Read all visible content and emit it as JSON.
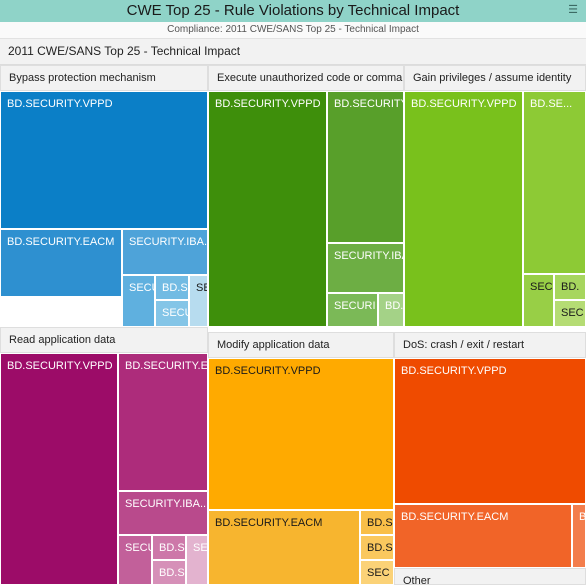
{
  "header": {
    "title": "CWE Top 25 - Rule Violations by Technical Impact",
    "subtitle": "Compliance: 2011 CWE/SANS Top 25 - Technical Impact",
    "breadcrumb": "2011 CWE/SANS Top 25 - Technical Impact",
    "menu_icon": "menu-icon"
  },
  "chart_data": {
    "type": "treemap",
    "title": "CWE Top 25 - Rule Violations by Technical Impact",
    "subtitle": "Compliance: 2011 CWE/SANS Top 25 - Technical Impact",
    "root": "2011 CWE/SANS Top 25 - Technical Impact",
    "groups": [
      {
        "name": "Bypass protection mechanism",
        "color": "#1480c8",
        "cells": [
          {
            "label": "BD.SECURITY.VPPD",
            "value": 28.5,
            "color": "#0b7fc7"
          },
          {
            "label": "BD.SECURITY.EACM",
            "value": 9.3,
            "color": "#2e90d0"
          },
          {
            "label": "SECURITY.IBA...",
            "value": 3.5,
            "color": "#4ea3d9"
          },
          {
            "label": "SECU",
            "value": 1.6,
            "color": "#5fb0df"
          },
          {
            "label": "BD.SE",
            "value": 0.8,
            "color": "#72bbe3"
          },
          {
            "label": "SECU",
            "value": 0.8,
            "color": "#84c5e7"
          },
          {
            "label": "SE",
            "value": 0.7,
            "color": "#b7dcef"
          }
        ]
      },
      {
        "name": "Execute unauthorized code or commands",
        "color": "#4a9a1a",
        "cells": [
          {
            "label": "BD.SECURITY.VPPD",
            "value": 20.0,
            "color": "#3e8f0b"
          },
          {
            "label": "BD.SECURITY...",
            "value": 10.5,
            "color": "#589f2a"
          },
          {
            "label": "SECURITY.IBA...",
            "value": 2.5,
            "color": "#6dae44"
          },
          {
            "label": "SECURI",
            "value": 1.3,
            "color": "#7bb957"
          },
          {
            "label": "BD.",
            "value": 0.5,
            "color": "#a4d287"
          }
        ]
      },
      {
        "name": "Gain privileges / assume identity",
        "color": "#7ec02a",
        "cells": [
          {
            "label": "BD.SECURITY.VPPD",
            "value": 19.5,
            "color": "#79c11c"
          },
          {
            "label": "BD.SE...",
            "value": 7.8,
            "color": "#8dca35"
          },
          {
            "label": "SEC",
            "value": 1.0,
            "color": "#98cf46"
          },
          {
            "label": "BD.",
            "value": 0.6,
            "color": "#a7d65e"
          },
          {
            "label": "SEC",
            "value": 0.6,
            "color": "#b5dc74"
          }
        ]
      },
      {
        "name": "Read application data",
        "color": "#a0106a",
        "cells": [
          {
            "label": "BD.SECURITY.VPPD",
            "value": 27.0,
            "color": "#9c0c68"
          },
          {
            "label": "BD.SECURITY.E...",
            "value": 11.0,
            "color": "#ad2c7b"
          },
          {
            "label": "SECURITY.IBA...",
            "value": 4.0,
            "color": "#b94a8c"
          },
          {
            "label": "SECU",
            "value": 1.5,
            "color": "#c2609a"
          },
          {
            "label": "BD.SE",
            "value": 0.8,
            "color": "#cd78a9"
          },
          {
            "label": "BD.SE",
            "value": 0.8,
            "color": "#d690b8"
          },
          {
            "label": "SE",
            "value": 0.6,
            "color": "#e3b3cf"
          }
        ]
      },
      {
        "name": "Modify application data",
        "color": "#ffaa00",
        "cells": [
          {
            "label": "BD.SECURITY.VPPD",
            "value": 20.5,
            "color": "#ffaa00"
          },
          {
            "label": "BD.SECURITY.EACM",
            "value": 9.0,
            "color": "#f7b52f"
          },
          {
            "label": "BD.S",
            "value": 1.0,
            "color": "#f9bf48"
          },
          {
            "label": "BD.S",
            "value": 1.0,
            "color": "#fac85e"
          },
          {
            "label": "SEC",
            "value": 1.0,
            "color": "#fbd277"
          }
        ]
      },
      {
        "name": "DoS: crash / exit / restart",
        "color": "#ef4b00",
        "cells": [
          {
            "label": "BD.SECURITY.VPPD",
            "value": 16.0,
            "color": "#ef4b00"
          },
          {
            "label": "BD.SECURITY.EACM",
            "value": 7.5,
            "color": "#f16428"
          },
          {
            "label": "B",
            "value": 0.7,
            "color": "#f37d4c"
          }
        ]
      },
      {
        "name": "Other",
        "color": "#f2f2f2",
        "cells": []
      }
    ]
  }
}
